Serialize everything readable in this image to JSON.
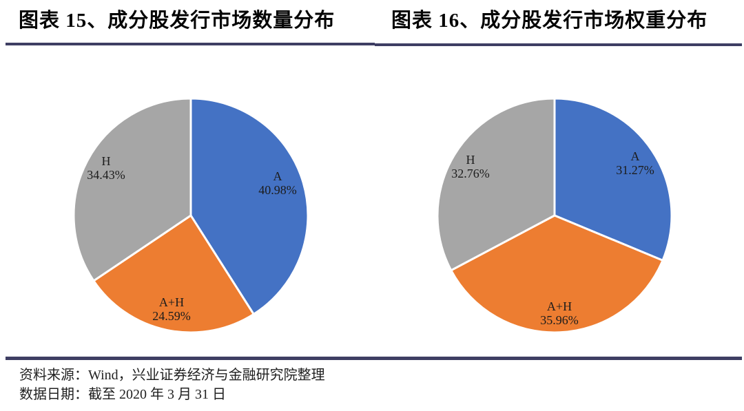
{
  "figures": [
    {
      "title": "图表 15、成分股发行市场数量分布",
      "slices": [
        {
          "name": "A",
          "pct": "40.98%"
        },
        {
          "name": "A+H",
          "pct": "24.59%"
        },
        {
          "name": "H",
          "pct": "34.43%"
        }
      ]
    },
    {
      "title": "图表 16、成分股发行市场权重分布",
      "slices": [
        {
          "name": "A",
          "pct": "31.27%"
        },
        {
          "name": "A+H",
          "pct": "35.96%"
        },
        {
          "name": "H",
          "pct": "32.76%"
        }
      ]
    }
  ],
  "chart_data": [
    {
      "type": "pie",
      "title": "图表 15、成分股发行市场数量分布",
      "categories": [
        "A",
        "A+H",
        "H"
      ],
      "values": [
        40.98,
        24.59,
        34.43
      ],
      "unit": "%",
      "colors": [
        "#4472C4",
        "#ED7D31",
        "#A6A6A6"
      ],
      "start_angle": 0,
      "direction": "clockwise",
      "labels_inside": true,
      "legend": "none"
    },
    {
      "type": "pie",
      "title": "图表 16、成分股发行市场权重分布",
      "categories": [
        "A",
        "A+H",
        "H"
      ],
      "values": [
        31.27,
        35.96,
        32.76
      ],
      "unit": "%",
      "colors": [
        "#4472C4",
        "#ED7D31",
        "#A6A6A6"
      ],
      "start_angle": 0,
      "direction": "clockwise",
      "labels_inside": true,
      "legend": "none"
    }
  ],
  "footer": {
    "source": "资料来源：Wind，兴业证券经济与金融研究院整理",
    "date": "数据日期：截至 2020 年 3 月 31 日"
  },
  "colors": {
    "slice_a": "#4472C4",
    "slice_a_h": "#ED7D31",
    "slice_h": "#A6A6A6",
    "accent_line": "#3e3e63"
  }
}
